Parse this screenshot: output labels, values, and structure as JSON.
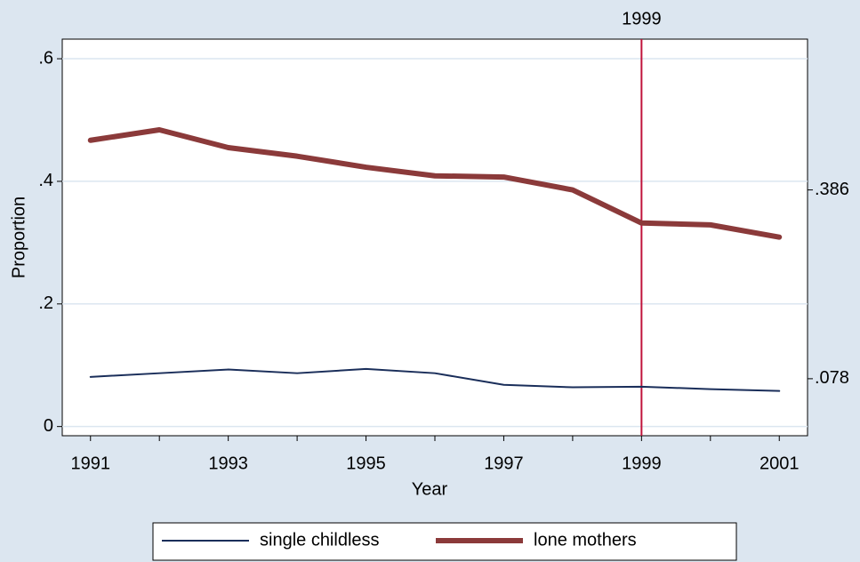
{
  "chart_data": {
    "type": "line",
    "x_label": "Year",
    "y_label": "Proportion",
    "x": [
      1991,
      1992,
      1993,
      1994,
      1995,
      1996,
      1997,
      1998,
      1999,
      2000,
      2001
    ],
    "series": [
      {
        "name": "single childless",
        "color": "#1a2e5a",
        "values": [
          0.081,
          0.087,
          0.093,
          0.087,
          0.094,
          0.087,
          0.068,
          0.064,
          0.065,
          0.061,
          0.058
        ]
      },
      {
        "name": "lone mothers",
        "color": "#8b3a3a",
        "values": [
          0.467,
          0.484,
          0.455,
          0.441,
          0.423,
          0.409,
          0.407,
          0.386,
          0.332,
          0.329,
          0.309
        ]
      }
    ],
    "xlim": [
      1990.59,
      2001.41
    ],
    "xticks": [
      1991,
      1993,
      1995,
      1997,
      1999,
      2001
    ],
    "ylim": [
      -0.015,
      0.632
    ],
    "yticks": [
      0,
      {
        "value": 0.2,
        "label": ".2"
      },
      {
        "value": 0.4,
        "label": ".4"
      },
      {
        "value": 0.6,
        "label": ".6"
      }
    ],
    "y2lim": [
      -0.015,
      0.632
    ],
    "y2ticks": [
      {
        "value": 0.078,
        "label": ".078"
      },
      {
        "value": 0.386,
        "label": ".386"
      }
    ],
    "xline": 1999,
    "xline_color": "#c0143c",
    "grid": true,
    "legend": "bottom"
  }
}
